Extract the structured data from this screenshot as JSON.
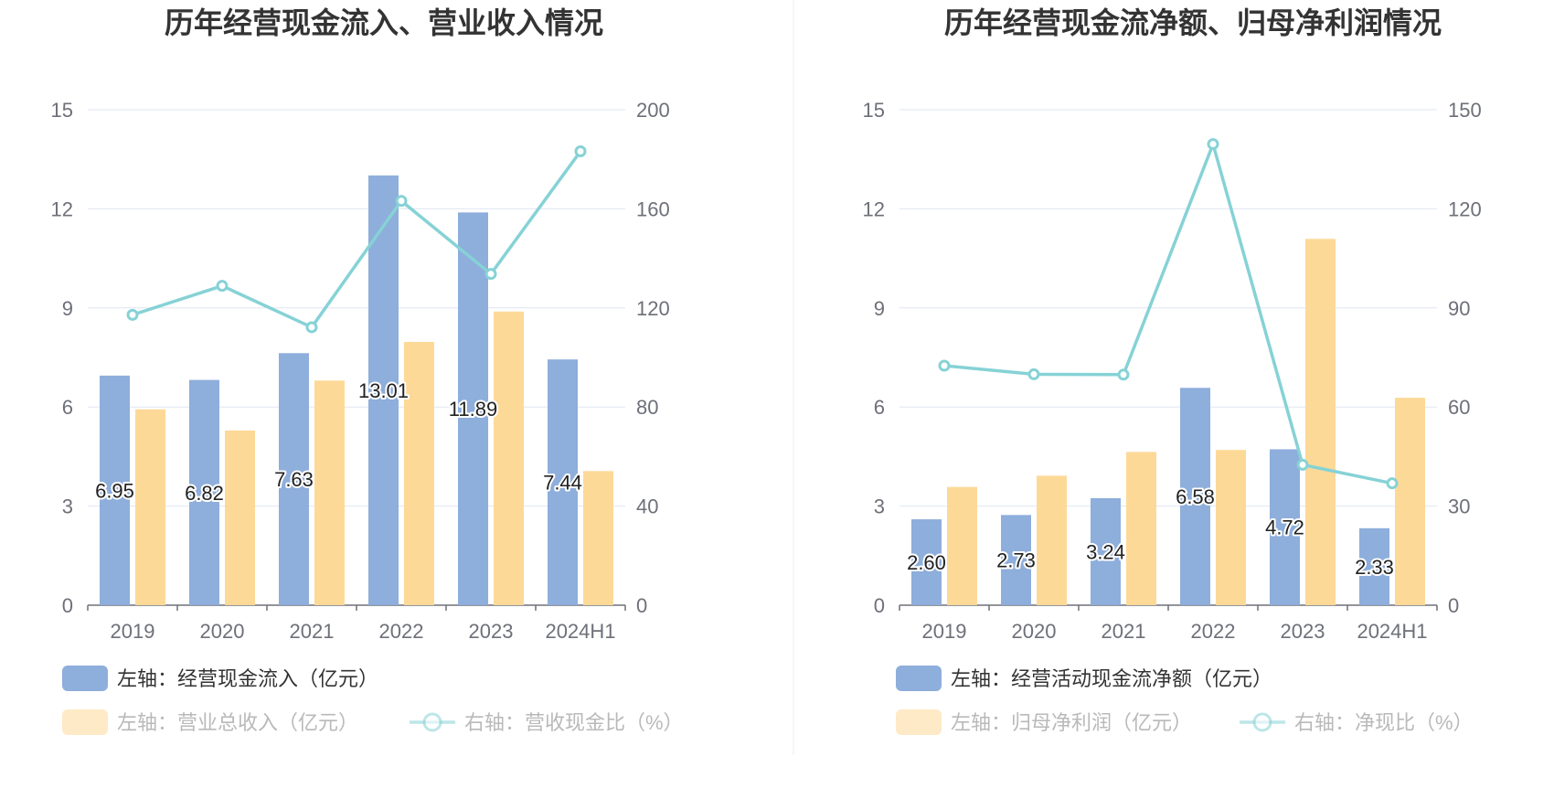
{
  "chart_data": [
    {
      "type": "bar",
      "title": "历年经营现金流入、营业收入情况",
      "categories": [
        "2019",
        "2020",
        "2021",
        "2022",
        "2023",
        "2024H1"
      ],
      "y_left": {
        "ticks": [
          "0",
          "3",
          "6",
          "9",
          "12",
          "15"
        ],
        "ylim": [
          0,
          15
        ]
      },
      "y_right": {
        "ticks": [
          "0",
          "40",
          "80",
          "120",
          "160",
          "200"
        ],
        "ylim": [
          0,
          200
        ]
      },
      "grid": true,
      "legend_position": "bottom",
      "series": [
        {
          "name": "左轴：经营现金流入（亿元）",
          "type": "bar",
          "axis": "left",
          "color": "#8eaedb",
          "values": [
            6.95,
            6.82,
            7.63,
            13.01,
            11.89,
            7.44
          ],
          "labels": [
            "6.95",
            "6.82",
            "7.63",
            "13.01",
            "11.89",
            "7.44"
          ]
        },
        {
          "name": "左轴：营业总收入（亿元）",
          "type": "bar",
          "axis": "left",
          "color": "#fdd998",
          "values": [
            5.93,
            5.29,
            6.8,
            7.97,
            8.89,
            4.06
          ]
        },
        {
          "name": "右轴：营收现金比（%）",
          "type": "line",
          "axis": "right",
          "color": "#86d2d6",
          "values": [
            117.2,
            128.9,
            112.2,
            163.2,
            133.7,
            183.2
          ]
        }
      ]
    },
    {
      "type": "bar",
      "title": "历年经营现金流净额、归母净利润情况",
      "categories": [
        "2019",
        "2020",
        "2021",
        "2022",
        "2023",
        "2024H1"
      ],
      "y_left": {
        "ticks": [
          "0",
          "3",
          "6",
          "9",
          "12",
          "15"
        ],
        "ylim": [
          0,
          15
        ]
      },
      "y_right": {
        "ticks": [
          "0",
          "30",
          "60",
          "90",
          "120",
          "150"
        ],
        "ylim": [
          0,
          150
        ]
      },
      "grid": true,
      "legend_position": "bottom",
      "series": [
        {
          "name": "左轴：经营活动现金流净额（亿元）",
          "type": "bar",
          "axis": "left",
          "color": "#8eaedb",
          "values": [
            2.6,
            2.73,
            3.24,
            6.58,
            4.72,
            2.33
          ],
          "labels": [
            "2.60",
            "2.73",
            "3.24",
            "6.58",
            "4.72",
            "2.33"
          ]
        },
        {
          "name": "左轴：归母净利润（亿元）",
          "type": "bar",
          "axis": "left",
          "color": "#fdd998",
          "values": [
            3.58,
            3.92,
            4.64,
            4.7,
            11.09,
            6.28
          ]
        },
        {
          "name": "右轴：净现比（%）",
          "type": "line",
          "axis": "right",
          "color": "#86d2d6",
          "values": [
            72.5,
            69.9,
            69.8,
            139.6,
            42.5,
            36.9
          ]
        }
      ]
    }
  ]
}
